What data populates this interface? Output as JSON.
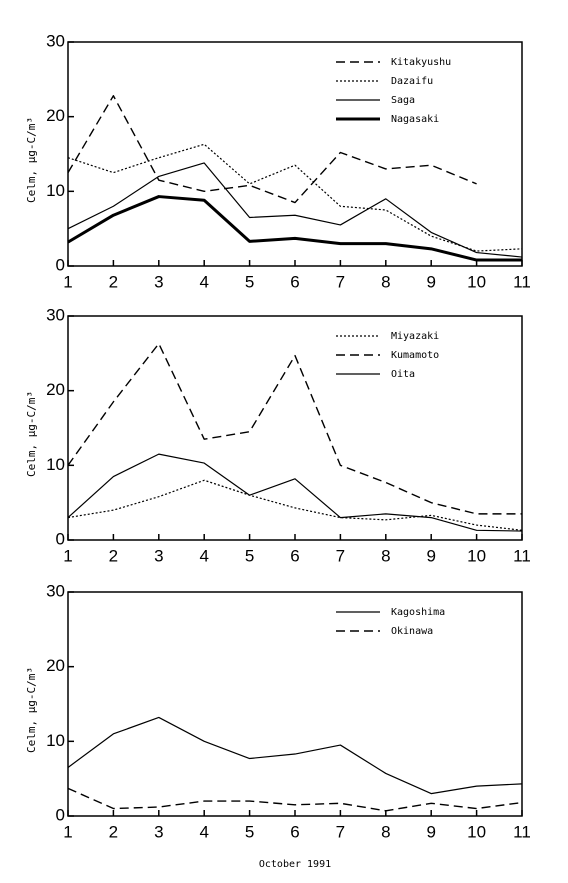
{
  "chart_data": [
    {
      "type": "line",
      "ylabel": "Celm, μg-C/m³",
      "x": [
        1,
        2,
        3,
        4,
        5,
        6,
        7,
        8,
        9,
        10,
        11
      ],
      "xlim": [
        1,
        11
      ],
      "xticks": [
        1,
        2,
        3,
        4,
        5,
        6,
        7,
        8,
        9,
        10,
        11
      ],
      "ylim": [
        0,
        30
      ],
      "yticks": [
        0,
        10,
        20,
        30
      ],
      "legend": "upper right",
      "series": [
        {
          "name": "Kitakyushu",
          "color": "#000000",
          "linestyle": "dashed",
          "values": [
            12.5,
            22.8,
            11.5,
            10,
            10.8,
            8.5,
            15.2,
            13,
            13.5,
            11,
            null
          ]
        },
        {
          "name": "Dazaifu",
          "color": "#000000",
          "linestyle": "dotted",
          "values": [
            14.5,
            12.5,
            14.5,
            16.3,
            11,
            13.5,
            8,
            7.5,
            4,
            2,
            2.3
          ]
        },
        {
          "name": "Saga",
          "color": "#000000",
          "linestyle": "solid",
          "values": [
            5,
            8,
            12,
            13.8,
            6.5,
            6.8,
            5.5,
            9,
            4.5,
            1.8,
            1.2
          ]
        },
        {
          "name": "Nagasaki",
          "color": "#000000",
          "linestyle": "bold",
          "values": [
            3.2,
            6.8,
            9.3,
            8.8,
            3.3,
            3.7,
            3,
            3,
            2.3,
            0.8,
            0.8
          ]
        }
      ]
    },
    {
      "type": "line",
      "ylabel": "Celm, μg-C/m³",
      "x": [
        1,
        2,
        3,
        4,
        5,
        6,
        7,
        8,
        9,
        10,
        11
      ],
      "xlim": [
        1,
        11
      ],
      "xticks": [
        1,
        2,
        3,
        4,
        5,
        6,
        7,
        8,
        9,
        10,
        11
      ],
      "ylim": [
        0,
        30
      ],
      "yticks": [
        0,
        10,
        20,
        30
      ],
      "legend": "upper right",
      "series": [
        {
          "name": "Miyazaki",
          "color": "#000000",
          "linestyle": "dotted",
          "values": [
            3,
            4,
            5.8,
            8,
            6,
            4.3,
            3,
            2.7,
            3.3,
            2,
            1.3
          ]
        },
        {
          "name": "Kumamoto",
          "color": "#000000",
          "linestyle": "dashed",
          "values": [
            10,
            18.5,
            26.3,
            13.5,
            14.5,
            24.7,
            10,
            7.7,
            5,
            3.5,
            3.5
          ]
        },
        {
          "name": "Oita",
          "color": "#000000",
          "linestyle": "solid",
          "values": [
            3,
            8.5,
            11.5,
            10.3,
            6,
            8.2,
            3,
            3.5,
            3,
            1.3,
            1.2
          ]
        }
      ]
    },
    {
      "type": "line",
      "ylabel": "Celm, μg-C/m³",
      "xlabel": "October 1991",
      "x": [
        1,
        2,
        3,
        4,
        5,
        6,
        7,
        8,
        9,
        10,
        11
      ],
      "xlim": [
        1,
        11
      ],
      "xticks": [
        1,
        2,
        3,
        4,
        5,
        6,
        7,
        8,
        9,
        10,
        11
      ],
      "ylim": [
        0,
        30
      ],
      "yticks": [
        0,
        10,
        20,
        30
      ],
      "legend": "upper right",
      "series": [
        {
          "name": "Kagoshima",
          "color": "#000000",
          "linestyle": "solid",
          "values": [
            6.5,
            11,
            13.2,
            10,
            7.7,
            8.3,
            9.5,
            5.7,
            3,
            4,
            4.3
          ]
        },
        {
          "name": "Okinawa",
          "color": "#000000",
          "linestyle": "dashed",
          "values": [
            3.7,
            1,
            1.2,
            2,
            2,
            1.5,
            1.7,
            0.7,
            1.7,
            1,
            1.8
          ]
        }
      ]
    }
  ]
}
